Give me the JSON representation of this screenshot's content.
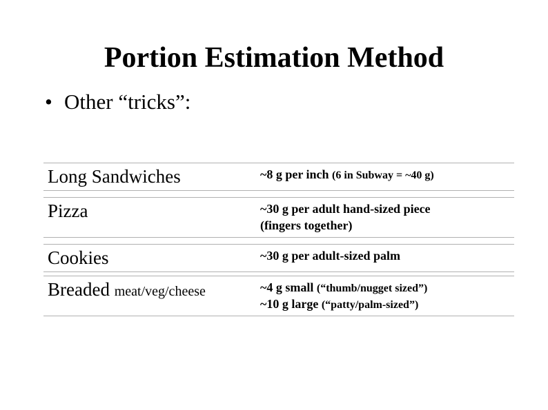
{
  "title": "Portion Estimation Method",
  "bullet": "Other “tricks”:",
  "rows": [
    {
      "label_main": "Long Sandwiches",
      "label_sub": "",
      "value_main": "~8 g per inch  ",
      "value_paren": "(6 in Subway = ~40 g)",
      "value_line2": ""
    },
    {
      "label_main": "Pizza",
      "label_sub": "",
      "value_main": "~30 g per adult hand-sized piece",
      "value_paren": "",
      "value_line2": "(fingers together)"
    },
    {
      "label_main": "Cookies",
      "label_sub": "",
      "value_main": "~30 g per adult-sized palm",
      "value_paren": "",
      "value_line2": ""
    },
    {
      "label_main": "Breaded ",
      "label_sub": "meat/veg/cheese",
      "value_main": "~4 g small ",
      "value_paren": "(“thumb/nugget sized”)",
      "value_line2_main": "~10 g large ",
      "value_line2_paren": "(“patty/palm-sized”)"
    }
  ]
}
